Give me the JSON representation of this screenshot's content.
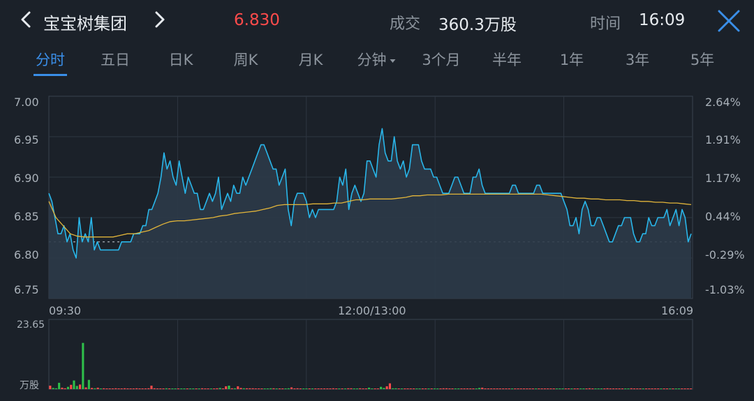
{
  "header": {
    "stock_name": "宝宝树集团",
    "price": "6.830",
    "volume_label": "成交",
    "volume_value": "360.3万股",
    "time_label": "时间",
    "time_value": "16:09"
  },
  "icons": {
    "back": "chevron-left-icon",
    "forward": "chevron-right-icon",
    "close": "close-icon"
  },
  "colors": {
    "accent": "#3a8ee8",
    "price_up": "#ff4b4b",
    "line": "#29b6ea",
    "avg": "#e2b53a",
    "vol_up": "#ff4b4b",
    "vol_down": "#2fbf4a"
  },
  "tabs": [
    {
      "label": "分时",
      "active": true
    },
    {
      "label": "五日"
    },
    {
      "label": "日K"
    },
    {
      "label": "周K"
    },
    {
      "label": "月K"
    },
    {
      "label": "分钟",
      "dropdown": true
    },
    {
      "label": "3个月"
    },
    {
      "label": "半年"
    },
    {
      "label": "1年"
    },
    {
      "label": "3年"
    },
    {
      "label": "5年"
    }
  ],
  "chart_data": [
    {
      "type": "line",
      "x_labels": [
        "09:30",
        "12:00/13:00",
        "16:09"
      ],
      "y_ticks": [
        "7.00",
        "6.95",
        "6.90",
        "6.85",
        "6.80",
        "6.75"
      ],
      "y_ticks_right": [
        "2.64%",
        "1.91%",
        "1.17%",
        "0.44%",
        "-0.29%",
        "-1.03%"
      ],
      "ylim": [
        6.75,
        7.0
      ],
      "prev_close": 6.82,
      "grid": true,
      "series": [
        {
          "role": "price",
          "values": [
            6.88,
            6.87,
            6.85,
            6.83,
            6.83,
            6.84,
            6.82,
            6.83,
            6.81,
            6.8,
            6.85,
            6.82,
            6.83,
            6.82,
            6.85,
            6.81,
            6.82,
            6.81,
            6.81,
            6.81,
            6.81,
            6.81,
            6.81,
            6.81,
            6.82,
            6.82,
            6.82,
            6.82,
            6.83,
            6.83,
            6.83,
            6.84,
            6.84,
            6.86,
            6.86,
            6.87,
            6.88,
            6.9,
            6.93,
            6.91,
            6.92,
            6.9,
            6.89,
            6.92,
            6.9,
            6.88,
            6.9,
            6.89,
            6.88,
            6.88,
            6.86,
            6.86,
            6.87,
            6.88,
            6.87,
            6.88,
            6.9,
            6.86,
            6.87,
            6.88,
            6.87,
            6.89,
            6.88,
            6.88,
            6.9,
            6.89,
            6.9,
            6.91,
            6.92,
            6.93,
            6.94,
            6.94,
            6.93,
            6.92,
            6.91,
            6.91,
            6.89,
            6.9,
            6.91,
            6.86,
            6.84,
            6.87,
            6.88,
            6.88,
            6.88,
            6.87,
            6.85,
            6.86,
            6.85,
            6.86,
            6.86,
            6.86,
            6.86,
            6.86,
            6.86,
            6.87,
            6.9,
            6.89,
            6.91,
            6.86,
            6.88,
            6.89,
            6.88,
            6.87,
            6.88,
            6.92,
            6.92,
            6.91,
            6.9,
            6.94,
            6.96,
            6.93,
            6.92,
            6.92,
            6.95,
            6.92,
            6.91,
            6.92,
            6.9,
            6.91,
            6.94,
            6.94,
            6.94,
            6.92,
            6.91,
            6.91,
            6.91,
            6.9,
            6.9,
            6.89,
            6.88,
            6.88,
            6.88,
            6.89,
            6.9,
            6.9,
            6.89,
            6.88,
            6.88,
            6.88,
            6.9,
            6.9,
            6.91,
            6.89,
            6.88,
            6.88,
            6.88,
            6.88,
            6.88,
            6.88,
            6.88,
            6.88,
            6.88,
            6.89,
            6.89,
            6.88,
            6.88,
            6.88,
            6.88,
            6.88,
            6.88,
            6.89,
            6.89,
            6.88,
            6.88,
            6.88,
            6.88,
            6.88,
            6.88,
            6.88,
            6.87,
            6.86,
            6.84,
            6.84,
            6.85,
            6.83,
            6.86,
            6.87,
            6.86,
            6.84,
            6.84,
            6.85,
            6.85,
            6.84,
            6.83,
            6.82,
            6.82,
            6.83,
            6.84,
            6.84,
            6.85,
            6.85,
            6.85,
            6.83,
            6.82,
            6.82,
            6.83,
            6.83,
            6.85,
            6.84,
            6.84,
            6.85,
            6.85,
            6.85,
            6.86,
            6.84,
            6.85,
            6.86,
            6.84,
            6.86,
            6.85,
            6.82,
            6.83
          ]
        },
        {
          "role": "average",
          "values": [
            6.87,
            6.85,
            6.84,
            6.83,
            6.827,
            6.826,
            6.826,
            6.826,
            6.826,
            6.826,
            6.828,
            6.83,
            6.83,
            6.832,
            6.834,
            6.838,
            6.842,
            6.845,
            6.846,
            6.846,
            6.847,
            6.848,
            6.849,
            6.85,
            6.852,
            6.853,
            6.855,
            6.856,
            6.857,
            6.858,
            6.86,
            6.862,
            6.865,
            6.866,
            6.866,
            6.866,
            6.866,
            6.867,
            6.867,
            6.867,
            6.868,
            6.868,
            6.87,
            6.872,
            6.872,
            6.873,
            6.873,
            6.873,
            6.873,
            6.874,
            6.875,
            6.877,
            6.877,
            6.878,
            6.878,
            6.878,
            6.879,
            6.879,
            6.879,
            6.879,
            6.879,
            6.879,
            6.879,
            6.879,
            6.879,
            6.879,
            6.879,
            6.879,
            6.879,
            6.879,
            6.878,
            6.877,
            6.876,
            6.875,
            6.874,
            6.874,
            6.873,
            6.873,
            6.872,
            6.872,
            6.872,
            6.871,
            6.871,
            6.87,
            6.87,
            6.869,
            6.869,
            6.868,
            6.868,
            6.867,
            6.866
          ]
        }
      ]
    },
    {
      "type": "bar",
      "ylabel": "万股",
      "y_max_label": "23.65",
      "ylim": [
        0,
        23.65
      ],
      "values": [
        1.2,
        0.4,
        0.3,
        2.2,
        0.5,
        0.3,
        0.8,
        1.5,
        3.0,
        1.1,
        1.6,
        16.0,
        0.6,
        3.2,
        0.4,
        0.3,
        0.5,
        0.2,
        0.3,
        0.2,
        0.2,
        0.2,
        0.3,
        0.2,
        0.2,
        0.3,
        0.2,
        0.2,
        0.2,
        0.3,
        0.2,
        0.2,
        0.2,
        0.3,
        1.2,
        0.3,
        0.2,
        0.2,
        0.2,
        0.3,
        0.2,
        0.2,
        0.2,
        0.2,
        0.2,
        0.2,
        0.2,
        0.2,
        0.2,
        0.2,
        0.2,
        0.3,
        0.2,
        0.2,
        0.2,
        0.2,
        0.3,
        0.4,
        0.2,
        1.0,
        1.2,
        0.3,
        0.3,
        1.0,
        0.4,
        0.3,
        0.3,
        0.3,
        0.3,
        0.2,
        0.2,
        0.2,
        0.2,
        0.2,
        0.3,
        0.3,
        0.2,
        0.2,
        0.2,
        0.2,
        0.3,
        0.6,
        0.2,
        0.3,
        0.2,
        0.2,
        0.2,
        0.2,
        0.2,
        0.2,
        0.2,
        0.2,
        0.2,
        0.2,
        0.2,
        0.3,
        0.2,
        0.2,
        0.2,
        0.2,
        0.3,
        0.3,
        0.2,
        0.2,
        0.3,
        0.2,
        0.2,
        0.5,
        0.2,
        0.2,
        0.2,
        0.8,
        0.4,
        1.0,
        2.0,
        0.3,
        0.3,
        0.2,
        0.2,
        0.2,
        0.2,
        0.2,
        0.2,
        0.2,
        0.2,
        0.2,
        0.2,
        0.2,
        0.2,
        0.2,
        0.2,
        0.2,
        0.3,
        0.3,
        0.2,
        0.2,
        0.2,
        0.2,
        0.2,
        0.2,
        0.2,
        0.2,
        0.2,
        0.2,
        0.4,
        0.5,
        0.2,
        0.2,
        0.2,
        0.2,
        0.2,
        0.2,
        0.2,
        0.2,
        0.2,
        0.2,
        0.2,
        0.2,
        0.2,
        0.2,
        0.2,
        0.2,
        0.2,
        0.2,
        0.2,
        0.2,
        0.2,
        0.2,
        0.2,
        0.2,
        0.2,
        0.2,
        0.2,
        0.2,
        0.2,
        0.2,
        0.2,
        0.2,
        0.2,
        0.2,
        0.2,
        0.3,
        0.2,
        0.2,
        0.2,
        0.2,
        0.2,
        0.3,
        0.2,
        0.2,
        0.2,
        0.2,
        0.2,
        0.2,
        0.2,
        0.3,
        0.2,
        0.2,
        0.2,
        0.2,
        0.2,
        0.2,
        0.2,
        0.2,
        0.2,
        0.2,
        0.2,
        0.2,
        0.2,
        0.2,
        0.2,
        0.2,
        0.2,
        0.2,
        0.2,
        0.2
      ]
    }
  ]
}
